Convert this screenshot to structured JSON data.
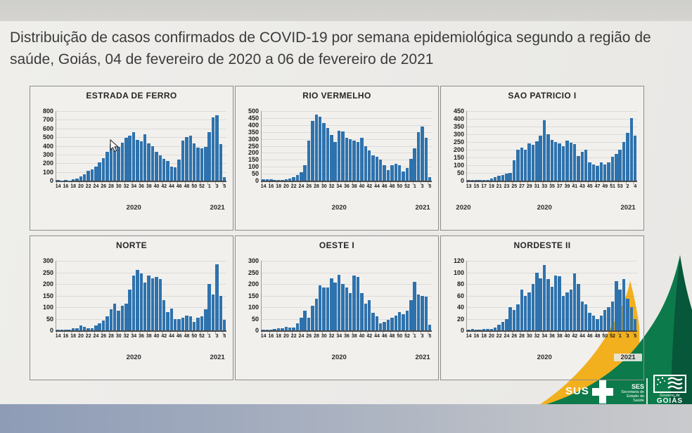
{
  "slide": {
    "title": "Distribuição de casos confirmados de COVID-19 por semana epidemiológica segundo a região de saúde, Goiás, 04 de fevereiro de 2020 a 06 de fevereiro de 2021"
  },
  "footer_logos": {
    "sus_label": "SUS",
    "ses_abbr": "SES",
    "ses_lines": [
      "Secretaria de",
      "Estado da",
      "Saúde"
    ],
    "gov_small": "Governo de",
    "gov_name": "GOIÁS"
  },
  "colors": {
    "bar": "#2e72ad",
    "mountain_yellow": "#f2b01e",
    "mountain_green": "#0c7a4a",
    "mountain_green_dark": "#07573a",
    "panel_bg": "#f1f0ed",
    "slide_bg": "#ecebe8",
    "bottom_band": "#9da8bc"
  },
  "week_sets": {
    "a": [
      "14",
      "15",
      "16",
      "17",
      "18",
      "19",
      "20",
      "21",
      "22",
      "23",
      "24",
      "25",
      "26",
      "27",
      "28",
      "29",
      "30",
      "31",
      "32",
      "33",
      "34",
      "35",
      "36",
      "37",
      "38",
      "39",
      "40",
      "41",
      "42",
      "43",
      "44",
      "45",
      "46",
      "47",
      "48",
      "49",
      "50",
      "51",
      "52",
      "53",
      "1",
      "2",
      "3",
      "4",
      "5"
    ],
    "b": [
      "13",
      "14",
      "15",
      "16",
      "17",
      "18",
      "19",
      "20",
      "21",
      "22",
      "23",
      "24",
      "25",
      "26",
      "27",
      "28",
      "29",
      "30",
      "31",
      "32",
      "33",
      "34",
      "35",
      "36",
      "37",
      "38",
      "39",
      "40",
      "41",
      "42",
      "43",
      "44",
      "45",
      "46",
      "47",
      "48",
      "49",
      "50",
      "51",
      "52",
      "53",
      "1",
      "2",
      "3",
      "4"
    ]
  },
  "chart_data": [
    {
      "type": "bar",
      "title": "ESTRADA DE FERRO",
      "ylim": [
        0,
        800
      ],
      "y_ticks": [
        "800",
        "700",
        "600",
        "500",
        "400",
        "300",
        "200",
        "100",
        "0"
      ],
      "week_set": "a",
      "year_labels": [
        {
          "text": "2020",
          "pos": "center",
          "chip": false
        },
        {
          "text": "2021",
          "pos": "right",
          "chip": false
        }
      ],
      "values": [
        8,
        2,
        5,
        3,
        15,
        25,
        45,
        70,
        110,
        130,
        160,
        210,
        260,
        330,
        420,
        400,
        390,
        440,
        490,
        520,
        560,
        470,
        450,
        530,
        430,
        400,
        330,
        290,
        250,
        230,
        160,
        150,
        240,
        460,
        500,
        520,
        430,
        380,
        370,
        390,
        560,
        730,
        755,
        420,
        40
      ]
    },
    {
      "type": "bar",
      "title": "RIO VERMELHO",
      "ylim": [
        0,
        500
      ],
      "y_ticks": [
        "500",
        "450",
        "400",
        "350",
        "300",
        "250",
        "200",
        "150",
        "100",
        "50",
        "0"
      ],
      "week_set": "a",
      "year_labels": [
        {
          "text": "2020",
          "pos": "center",
          "chip": false
        },
        {
          "text": "2021",
          "pos": "right",
          "chip": false
        }
      ],
      "values": [
        8,
        8,
        8,
        3,
        5,
        5,
        10,
        15,
        25,
        40,
        60,
        110,
        290,
        430,
        475,
        460,
        415,
        380,
        330,
        280,
        360,
        355,
        310,
        300,
        290,
        280,
        310,
        250,
        215,
        180,
        170,
        150,
        110,
        75,
        110,
        120,
        110,
        65,
        90,
        155,
        230,
        350,
        390,
        310,
        25
      ]
    },
    {
      "type": "bar",
      "title": "SAO PATRICIO I",
      "ylim": [
        0,
        450
      ],
      "y_ticks": [
        "450",
        "400",
        "350",
        "300",
        "250",
        "200",
        "150",
        "100",
        "50",
        "0"
      ],
      "week_set": "b",
      "year_labels": [
        {
          "text": "2020",
          "pos": "left",
          "chip": false
        },
        {
          "text": "2020",
          "pos": "center",
          "chip": false
        },
        {
          "text": "2021",
          "pos": "right",
          "chip": false
        }
      ],
      "values": [
        5,
        5,
        5,
        3,
        3,
        5,
        15,
        25,
        30,
        35,
        45,
        50,
        130,
        200,
        215,
        200,
        240,
        230,
        255,
        290,
        390,
        300,
        265,
        250,
        240,
        225,
        260,
        245,
        235,
        160,
        185,
        200,
        120,
        105,
        95,
        120,
        105,
        120,
        155,
        175,
        200,
        250,
        310,
        405,
        290
      ]
    },
    {
      "type": "bar",
      "title": "NORTE",
      "ylim": [
        0,
        300
      ],
      "y_ticks": [
        "300",
        "250",
        "200",
        "150",
        "100",
        "50",
        "0"
      ],
      "week_set": "a",
      "year_labels": [
        {
          "text": "2020",
          "pos": "center",
          "chip": false
        },
        {
          "text": "2021",
          "pos": "right",
          "chip": false
        }
      ],
      "values": [
        3,
        2,
        3,
        3,
        8,
        10,
        22,
        15,
        10,
        8,
        20,
        30,
        42,
        60,
        90,
        115,
        85,
        105,
        115,
        175,
        235,
        260,
        245,
        205,
        235,
        225,
        230,
        220,
        130,
        80,
        95,
        50,
        50,
        55,
        65,
        60,
        35,
        55,
        60,
        90,
        200,
        155,
        285,
        150,
        45
      ]
    },
    {
      "type": "bar",
      "title": "OESTE I",
      "ylim": [
        0,
        300
      ],
      "y_ticks": [
        "300",
        "250",
        "200",
        "150",
        "100",
        "50",
        "0"
      ],
      "week_set": "a",
      "year_labels": [
        {
          "text": "2020",
          "pos": "center",
          "chip": false
        },
        {
          "text": "2021",
          "pos": "right",
          "chip": false
        }
      ],
      "values": [
        2,
        2,
        3,
        5,
        8,
        10,
        15,
        12,
        12,
        30,
        55,
        85,
        55,
        105,
        135,
        195,
        185,
        185,
        225,
        205,
        240,
        200,
        185,
        160,
        235,
        230,
        160,
        115,
        130,
        75,
        60,
        30,
        35,
        45,
        55,
        65,
        80,
        70,
        85,
        130,
        210,
        155,
        150,
        145,
        25
      ]
    },
    {
      "type": "bar",
      "title": "NORDESTE II",
      "ylim": [
        0,
        120
      ],
      "y_ticks": [
        "120",
        "100",
        "80",
        "60",
        "40",
        "20",
        "0"
      ],
      "week_set": "a",
      "year_labels": [
        {
          "text": "2020",
          "pos": "center",
          "chip": false
        },
        {
          "text": "2021",
          "pos": "right",
          "chip": true
        }
      ],
      "values": [
        1,
        2,
        1,
        1,
        2,
        2,
        3,
        5,
        10,
        15,
        20,
        40,
        35,
        45,
        70,
        60,
        65,
        80,
        100,
        90,
        113,
        88,
        75,
        95,
        93,
        60,
        65,
        70,
        98,
        80,
        50,
        45,
        30,
        25,
        20,
        25,
        35,
        40,
        50,
        85,
        70,
        88,
        55,
        40,
        20
      ]
    }
  ]
}
